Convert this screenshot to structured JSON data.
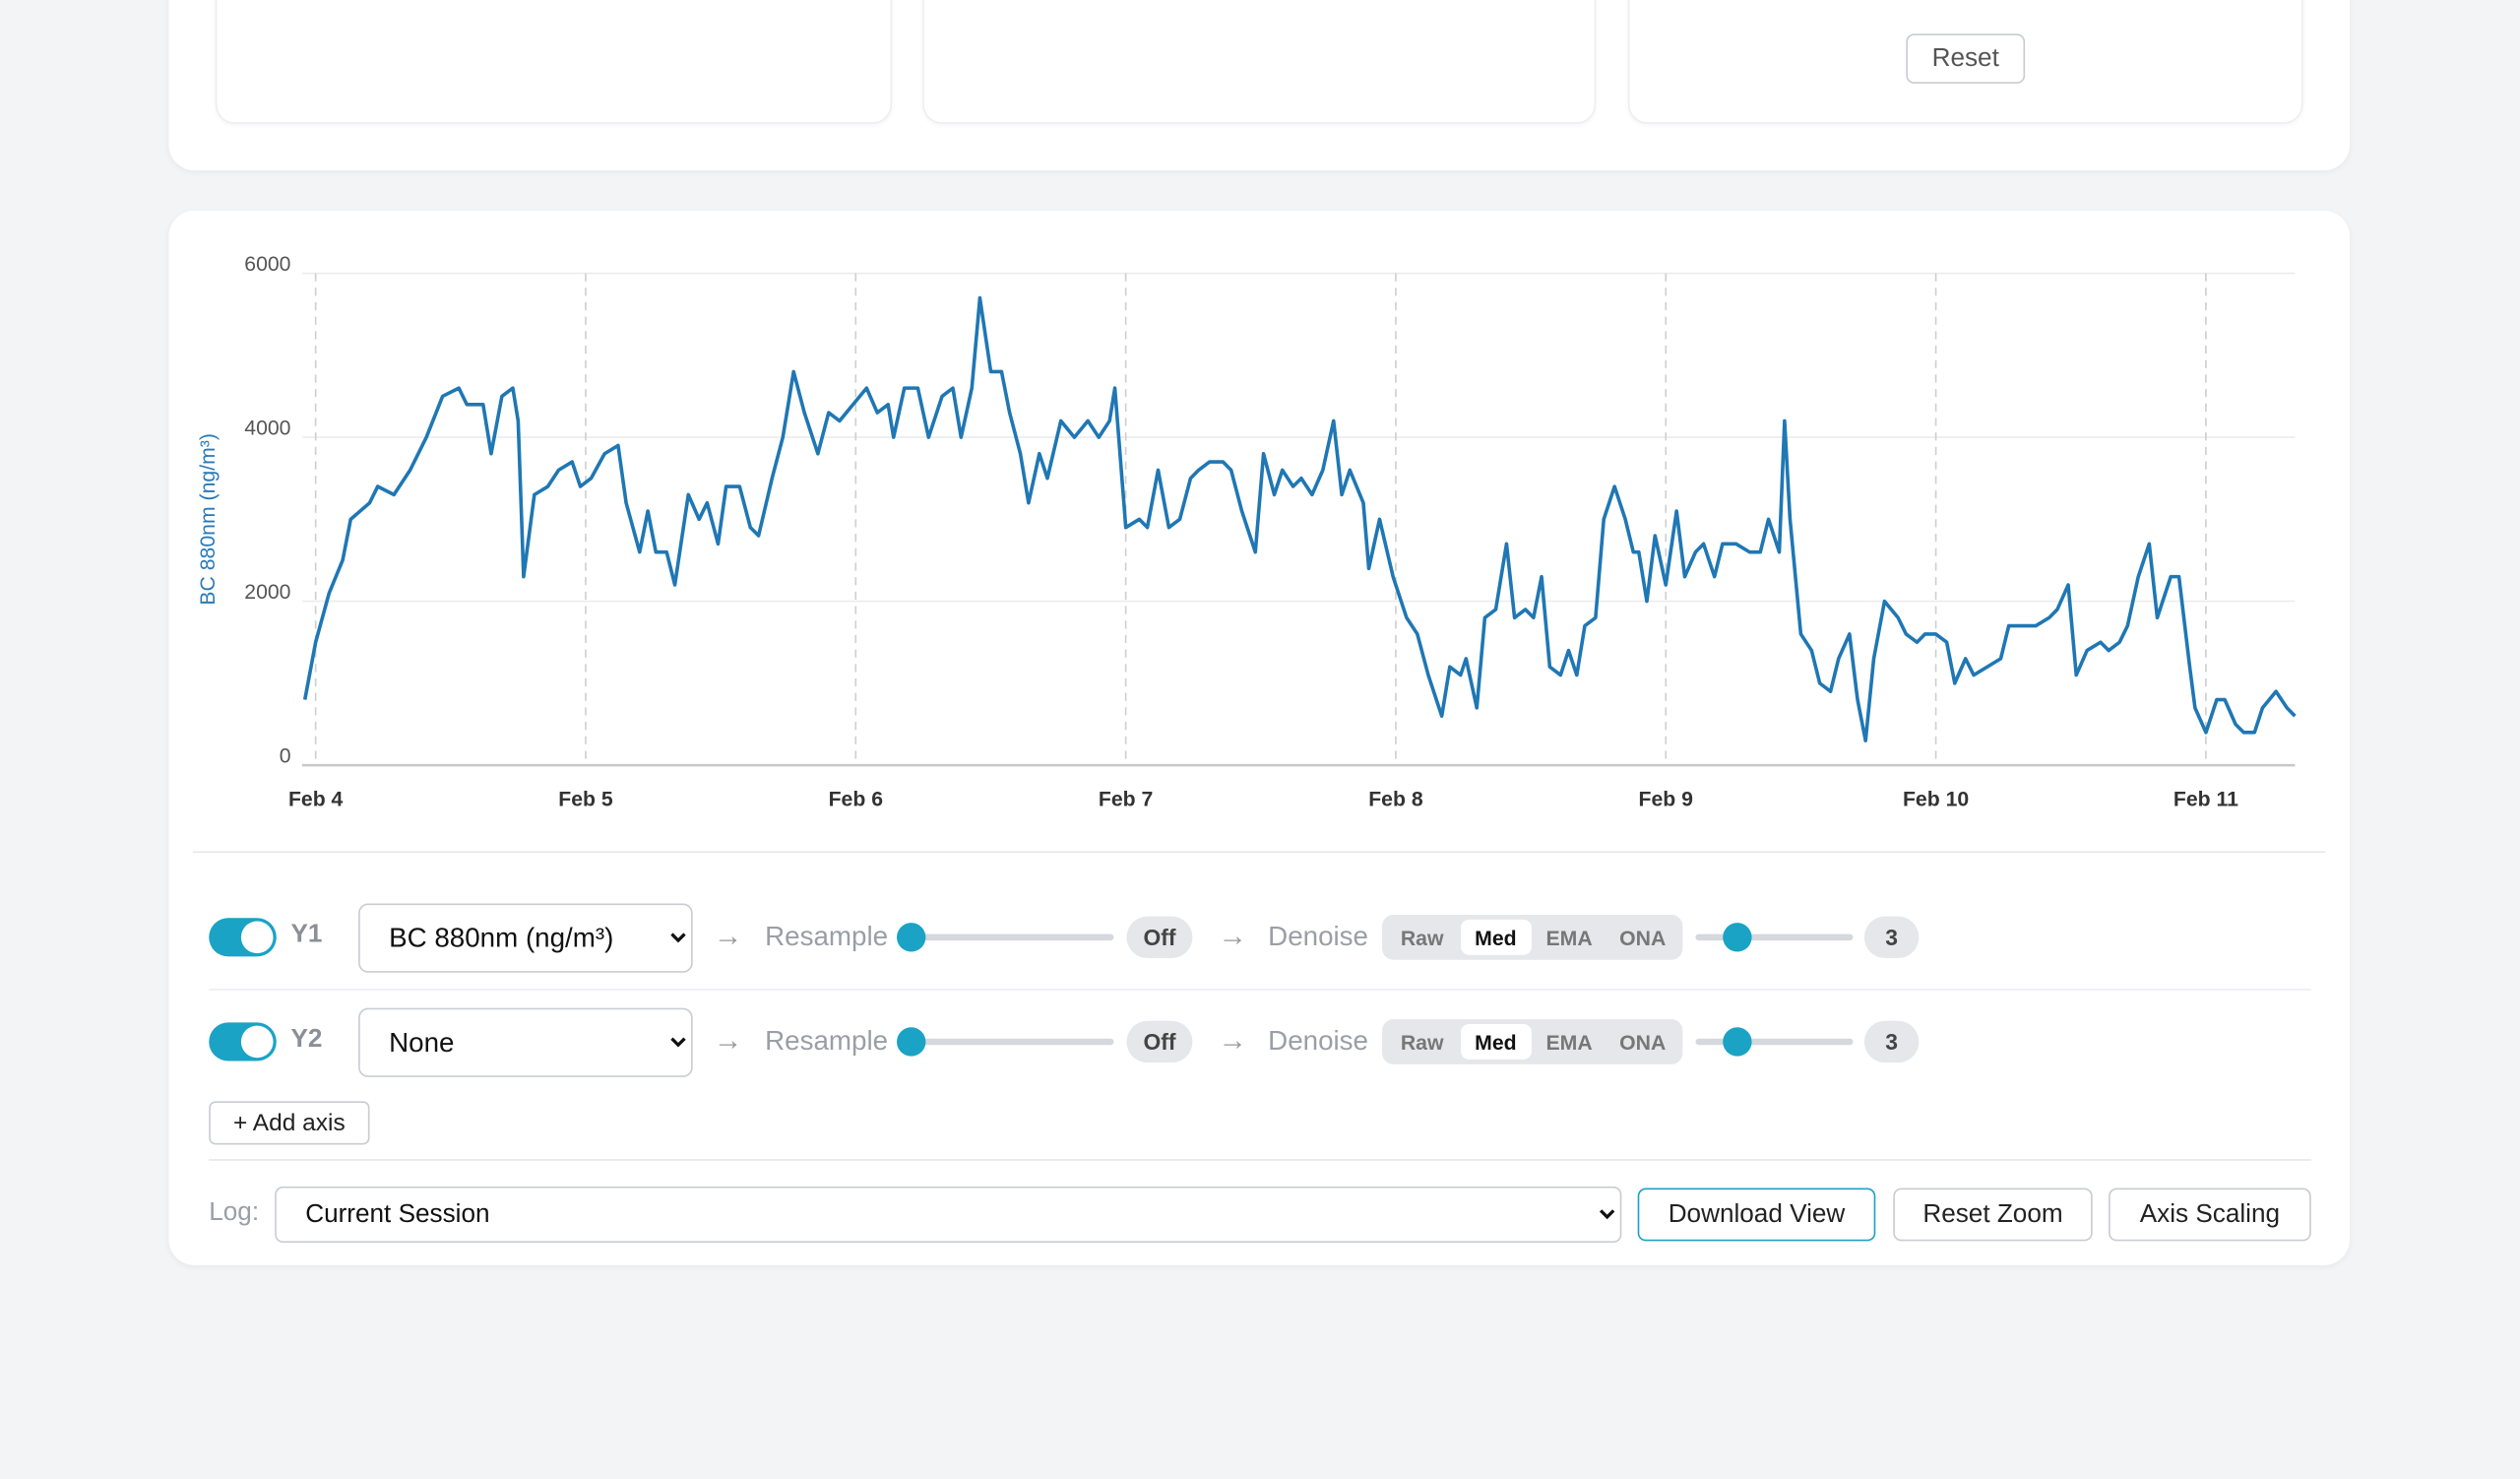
{
  "top_panel": {
    "reset_button": "Reset"
  },
  "chart_data": {
    "type": "line",
    "y_label": "BC 880nm (ng/m³)",
    "color": "#1f77b4",
    "grid": true,
    "xlim": [
      3.95,
      11.33
    ],
    "xticks": [
      {
        "value": 4,
        "label": "Feb 4"
      },
      {
        "value": 5,
        "label": "Feb 5"
      },
      {
        "value": 6,
        "label": "Feb 6"
      },
      {
        "value": 7,
        "label": "Feb 7"
      },
      {
        "value": 8,
        "label": "Feb 8"
      },
      {
        "value": 9,
        "label": "Feb 9"
      },
      {
        "value": 10,
        "label": "Feb 10"
      },
      {
        "value": 11,
        "label": "Feb 11"
      }
    ],
    "ylim": [
      0,
      6000
    ],
    "yticks": [
      0,
      2000,
      4000,
      6000
    ],
    "x": [
      3.96,
      4.0,
      4.05,
      4.1,
      4.13,
      4.2,
      4.23,
      4.29,
      4.35,
      4.41,
      4.47,
      4.53,
      4.56,
      4.62,
      4.65,
      4.69,
      4.73,
      4.75,
      4.77,
      4.81,
      4.86,
      4.9,
      4.95,
      4.98,
      5.02,
      5.07,
      5.12,
      5.15,
      5.2,
      5.23,
      5.26,
      5.3,
      5.33,
      5.38,
      5.42,
      5.45,
      5.49,
      5.52,
      5.57,
      5.61,
      5.64,
      5.69,
      5.73,
      5.77,
      5.81,
      5.86,
      5.9,
      5.94,
      5.99,
      6.04,
      6.08,
      6.12,
      6.14,
      6.18,
      6.23,
      6.27,
      6.32,
      6.36,
      6.39,
      6.43,
      6.46,
      6.5,
      6.54,
      6.57,
      6.61,
      6.64,
      6.68,
      6.71,
      6.76,
      6.81,
      6.86,
      6.9,
      6.94,
      6.96,
      7.0,
      7.05,
      7.08,
      7.12,
      7.16,
      7.2,
      7.24,
      7.27,
      7.31,
      7.36,
      7.39,
      7.43,
      7.48,
      7.51,
      7.55,
      7.58,
      7.62,
      7.65,
      7.69,
      7.73,
      7.77,
      7.8,
      7.83,
      7.88,
      7.9,
      7.94,
      7.99,
      8.04,
      8.08,
      8.12,
      8.17,
      8.2,
      8.24,
      8.26,
      8.3,
      8.33,
      8.37,
      8.41,
      8.44,
      8.48,
      8.51,
      8.54,
      8.57,
      8.61,
      8.64,
      8.67,
      8.7,
      8.74,
      8.77,
      8.81,
      8.85,
      8.88,
      8.9,
      8.93,
      8.96,
      9.0,
      9.04,
      9.07,
      9.11,
      9.14,
      9.18,
      9.21,
      9.26,
      9.31,
      9.35,
      9.38,
      9.42,
      9.44,
      9.46,
      9.5,
      9.54,
      9.57,
      9.61,
      9.64,
      9.68,
      9.71,
      9.74,
      9.77,
      9.81,
      9.86,
      9.89,
      9.93,
      9.96,
      10.0,
      10.04,
      10.07,
      10.11,
      10.14,
      10.19,
      10.24,
      10.27,
      10.32,
      10.37,
      10.42,
      10.45,
      10.49,
      10.52,
      10.56,
      10.61,
      10.64,
      10.68,
      10.71,
      10.75,
      10.79,
      10.82,
      10.87,
      10.9,
      10.94,
      10.96,
      11.0,
      11.04,
      11.07,
      11.11,
      11.14,
      11.18,
      11.21,
      11.26,
      11.3,
      11.33
    ],
    "values": [
      800,
      1500,
      2100,
      2500,
      3000,
      3200,
      3400,
      3300,
      3600,
      4000,
      4500,
      4600,
      4400,
      4400,
      3800,
      4500,
      4600,
      4200,
      2300,
      3300,
      3400,
      3600,
      3700,
      3400,
      3500,
      3800,
      3900,
      3200,
      2600,
      3100,
      2600,
      2600,
      2200,
      3300,
      3000,
      3200,
      2700,
      3400,
      3400,
      2900,
      2800,
      3500,
      4000,
      4800,
      4300,
      3800,
      4300,
      4200,
      4400,
      4600,
      4300,
      4400,
      4000,
      4600,
      4600,
      4000,
      4500,
      4600,
      4000,
      4600,
      5700,
      4800,
      4800,
      4300,
      3800,
      3200,
      3800,
      3500,
      4200,
      4000,
      4200,
      4000,
      4200,
      4600,
      2900,
      3000,
      2900,
      3600,
      2900,
      3000,
      3500,
      3600,
      3700,
      3700,
      3600,
      3100,
      2600,
      3800,
      3300,
      3600,
      3400,
      3500,
      3300,
      3600,
      4200,
      3300,
      3600,
      3200,
      2400,
      3000,
      2300,
      1800,
      1600,
      1100,
      600,
      1200,
      1100,
      1300,
      700,
      1800,
      1900,
      2700,
      1800,
      1900,
      1800,
      2300,
      1200,
      1100,
      1400,
      1100,
      1700,
      1800,
      3000,
      3400,
      3000,
      2600,
      2600,
      2000,
      2800,
      2200,
      3100,
      2300,
      2600,
      2700,
      2300,
      2700,
      2700,
      2600,
      2600,
      3000,
      2600,
      4200,
      3000,
      1600,
      1400,
      1000,
      900,
      1300,
      1600,
      800,
      300,
      1300,
      2000,
      1800,
      1600,
      1500,
      1600,
      1600,
      1500,
      1000,
      1300,
      1100,
      1200,
      1300,
      1700,
      1700,
      1700,
      1800,
      1900,
      2200,
      1100,
      1400,
      1500,
      1400,
      1500,
      1700,
      2300,
      2700,
      1800,
      2300,
      2300,
      1200,
      700,
      400,
      800,
      800,
      500,
      400,
      400,
      700,
      900,
      700,
      600
    ]
  },
  "axis_rows": [
    {
      "label": "Y1",
      "enabled": true,
      "channel": "BC 880nm (ng/m³)",
      "resample_label": "Resample",
      "resample_value": "Off",
      "denoise_label": "Denoise",
      "denoise_modes": [
        "Raw",
        "Med",
        "EMA",
        "ONA"
      ],
      "denoise_selected": "Med",
      "denoise_window": 3
    },
    {
      "label": "Y2",
      "enabled": true,
      "channel": "None",
      "resample_label": "Resample",
      "resample_value": "Off",
      "denoise_label": "Denoise",
      "denoise_modes": [
        "Raw",
        "Med",
        "EMA",
        "ONA"
      ],
      "denoise_selected": "Med",
      "denoise_window": 3
    }
  ],
  "add_axis": "+ Add axis",
  "log": {
    "label": "Log:",
    "session": "Current Session"
  },
  "buttons": [
    "Download View",
    "Reset Zoom",
    "Axis Scaling"
  ]
}
